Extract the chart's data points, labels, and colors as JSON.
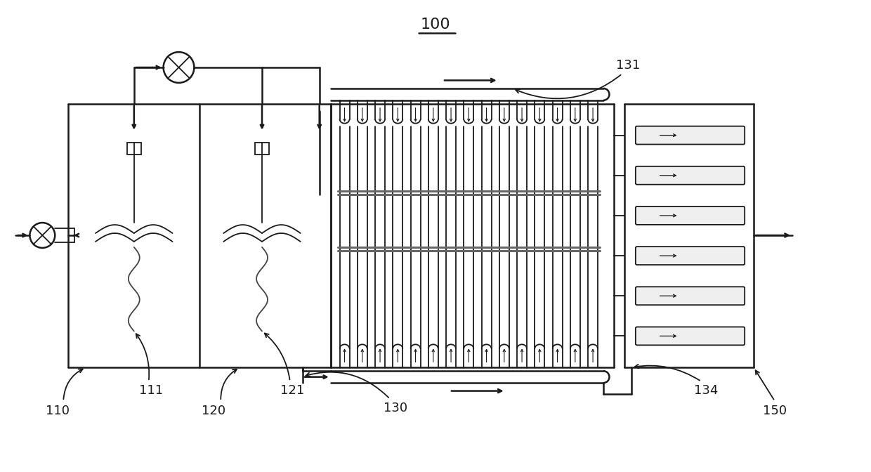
{
  "bg_color": "#ffffff",
  "line_color": "#1a1a1a",
  "fig_width": 12.4,
  "fig_height": 6.72,
  "dpi": 100
}
